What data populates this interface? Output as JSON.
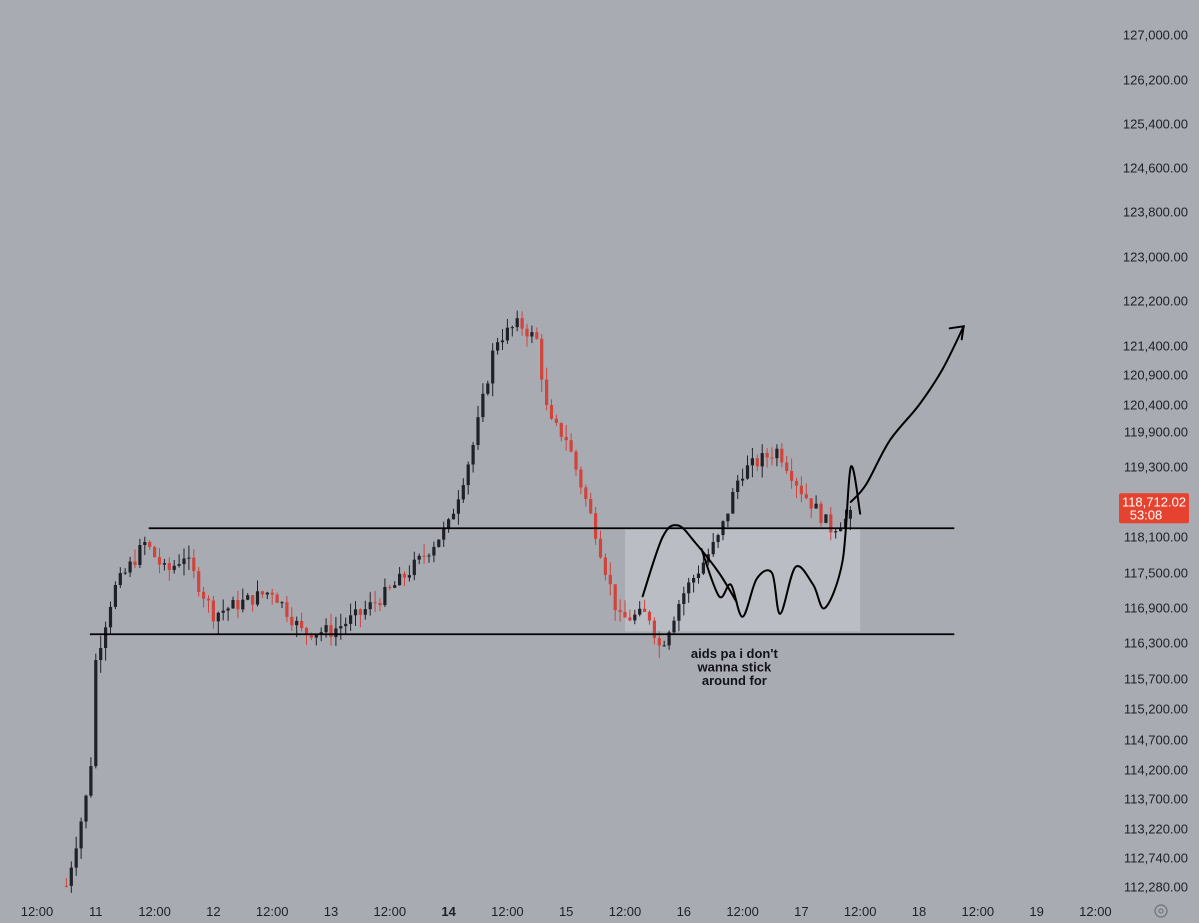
{
  "chart_data": {
    "type": "candlestick",
    "y_axis": {
      "range": [
        112000,
        127400
      ],
      "ticks": [
        {
          "value": 127000,
          "label": "127,000.00"
        },
        {
          "value": 126200,
          "label": "126,200.00"
        },
        {
          "value": 125400,
          "label": "125,400.00"
        },
        {
          "value": 124600,
          "label": "124,600.00"
        },
        {
          "value": 123800,
          "label": "123,800.00"
        },
        {
          "value": 123000,
          "label": "123,000.00"
        },
        {
          "value": 122200,
          "label": "122,200.00"
        },
        {
          "value": 121400,
          "label": "121,400.00"
        },
        {
          "value": 120900,
          "label": "120,900.00"
        },
        {
          "value": 120400,
          "label": "120,400.00"
        },
        {
          "value": 119900,
          "label": "119,900.00"
        },
        {
          "value": 119300,
          "label": "119,300.00"
        },
        {
          "value": 118100,
          "label": "118,100.00"
        },
        {
          "value": 117500,
          "label": "117,500.00"
        },
        {
          "value": 116900,
          "label": "116,900.00"
        },
        {
          "value": 116300,
          "label": "116,300.00"
        },
        {
          "value": 115700,
          "label": "115,700.00"
        },
        {
          "value": 115200,
          "label": "115,200.00"
        },
        {
          "value": 114700,
          "label": "114,700.00"
        },
        {
          "value": 114200,
          "label": "114,200.00"
        },
        {
          "value": 113700,
          "label": "113,700.00"
        },
        {
          "value": 113220,
          "label": "113,220.00"
        },
        {
          "value": 112740,
          "label": "112,740.00"
        },
        {
          "value": 112280,
          "label": "112,280.00"
        }
      ]
    },
    "x_axis": {
      "range": [
        10.0,
        20.167
      ],
      "ticks": [
        {
          "value": 10.5,
          "label": "12:00",
          "bold": false
        },
        {
          "value": 11.0,
          "label": "11",
          "bold": false
        },
        {
          "value": 11.5,
          "label": "12:00",
          "bold": false
        },
        {
          "value": 12.0,
          "label": "12",
          "bold": false
        },
        {
          "value": 12.5,
          "label": "12:00",
          "bold": false
        },
        {
          "value": 13.0,
          "label": "13",
          "bold": false
        },
        {
          "value": 13.5,
          "label": "12:00",
          "bold": false
        },
        {
          "value": 14.0,
          "label": "14",
          "bold": true
        },
        {
          "value": 14.5,
          "label": "12:00",
          "bold": false
        },
        {
          "value": 15.0,
          "label": "15",
          "bold": false
        },
        {
          "value": 15.5,
          "label": "12:00",
          "bold": false
        },
        {
          "value": 16.0,
          "label": "16",
          "bold": false
        },
        {
          "value": 16.5,
          "label": "12:00",
          "bold": false
        },
        {
          "value": 17.0,
          "label": "17",
          "bold": false
        },
        {
          "value": 17.5,
          "label": "12:00",
          "bold": false
        },
        {
          "value": 18.0,
          "label": "18",
          "bold": false
        },
        {
          "value": 18.5,
          "label": "12:00",
          "bold": false
        },
        {
          "value": 19.0,
          "label": "19",
          "bold": false
        },
        {
          "value": 19.5,
          "label": "12:00",
          "bold": false
        }
      ]
    },
    "colors": {
      "background": "#a9abb3",
      "up_candle": "#1f2127",
      "down_candle": "#d0443c",
      "price_tag": "#e5432f",
      "line": "#000000",
      "zone": "#bdbfc6"
    },
    "key_points": [
      {
        "x": 10.75,
        "close": 112300
      },
      {
        "x": 10.95,
        "close": 114000
      },
      {
        "x": 11.0,
        "close": 116000
      },
      {
        "x": 11.15,
        "close": 117200
      },
      {
        "x": 11.42,
        "close": 118000
      },
      {
        "x": 11.6,
        "close": 117500
      },
      {
        "x": 11.75,
        "close": 117800
      },
      {
        "x": 12.0,
        "close": 116800
      },
      {
        "x": 12.25,
        "close": 117000
      },
      {
        "x": 12.5,
        "close": 117200
      },
      {
        "x": 12.75,
        "close": 116500
      },
      {
        "x": 13.0,
        "close": 116500
      },
      {
        "x": 13.25,
        "close": 116800
      },
      {
        "x": 13.5,
        "close": 117200
      },
      {
        "x": 13.75,
        "close": 117700
      },
      {
        "x": 14.0,
        "close": 118300
      },
      {
        "x": 14.2,
        "close": 119600
      },
      {
        "x": 14.4,
        "close": 121500
      },
      {
        "x": 14.6,
        "close": 121800
      },
      {
        "x": 14.75,
        "close": 121500
      },
      {
        "x": 14.85,
        "close": 120100
      },
      {
        "x": 15.0,
        "close": 119800
      },
      {
        "x": 15.25,
        "close": 118200
      },
      {
        "x": 15.45,
        "close": 116700
      },
      {
        "x": 15.7,
        "close": 116800
      },
      {
        "x": 15.8,
        "close": 116200
      },
      {
        "x": 15.98,
        "close": 117100
      },
      {
        "x": 16.3,
        "close": 118100
      },
      {
        "x": 16.48,
        "close": 119200
      },
      {
        "x": 16.8,
        "close": 119600
      },
      {
        "x": 17.0,
        "close": 118900
      },
      {
        "x": 17.25,
        "close": 118250
      },
      {
        "x": 17.42,
        "close": 118450
      }
    ],
    "levels": [
      {
        "name": "resistance",
        "y": 118250,
        "x_start": 11.45,
        "x_end": 18.3
      },
      {
        "name": "support",
        "y": 116450,
        "x_start": 10.95,
        "x_end": 18.3
      }
    ],
    "zone": {
      "x_start": 15.5,
      "x_end": 17.5,
      "y_low": 116500,
      "y_high": 118250
    },
    "last_price": {
      "value": 118712.02,
      "label": "118,712.02",
      "timer": "53:08"
    },
    "annotation": {
      "lines": [
        "aids pa i don't",
        "wanna stick",
        "around for"
      ],
      "x": 16.43,
      "y": 116250
    },
    "drawings": [
      {
        "name": "projection-arrow",
        "points": [
          [
            17.42,
            118700
          ],
          [
            17.55,
            119000
          ],
          [
            17.75,
            119750
          ],
          [
            18.0,
            120400
          ],
          [
            18.2,
            121000
          ],
          [
            18.38,
            121750
          ]
        ]
      },
      {
        "name": "scribble-left",
        "points": [
          [
            15.65,
            117100
          ],
          [
            15.82,
            118100
          ],
          [
            15.95,
            118300
          ],
          [
            16.1,
            118000
          ],
          [
            16.3,
            117500
          ],
          [
            16.45,
            117000
          ]
        ]
      },
      {
        "name": "scribble-right",
        "points": [
          [
            16.15,
            117900
          ],
          [
            16.3,
            117100
          ],
          [
            16.4,
            117300
          ],
          [
            16.5,
            116750
          ],
          [
            16.62,
            117400
          ],
          [
            16.75,
            117500
          ],
          [
            16.82,
            116800
          ],
          [
            16.95,
            117600
          ],
          [
            17.1,
            117300
          ],
          [
            17.2,
            116900
          ],
          [
            17.35,
            117700
          ],
          [
            17.42,
            119300
          ],
          [
            17.5,
            118500
          ]
        ]
      }
    ]
  }
}
